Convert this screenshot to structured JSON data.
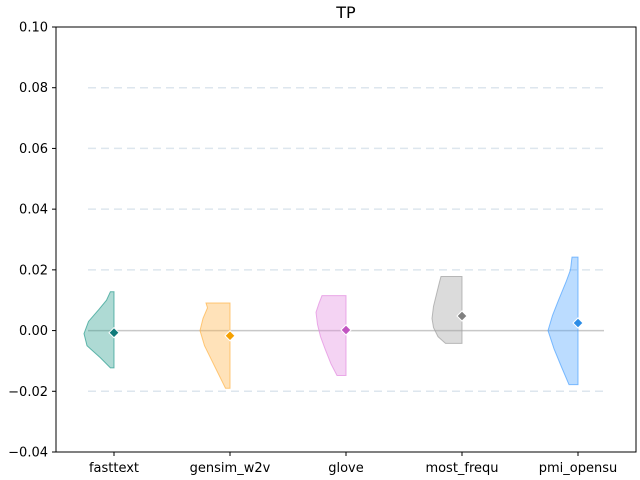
{
  "chart_data": {
    "type": "violin",
    "title": "TP",
    "xlabel": "",
    "ylabel": "",
    "ylim": [
      -0.04,
      0.1
    ],
    "yticks": [
      -0.04,
      -0.02,
      0.0,
      0.02,
      0.04,
      0.06,
      0.08,
      0.1
    ],
    "ytick_labels": [
      "−0.04",
      "−0.02",
      "0.00",
      "0.02",
      "0.04",
      "0.06",
      "0.08",
      "0.10"
    ],
    "grid": "horizontal dashed",
    "reference_line": 0.0,
    "categories": [
      "fasttext",
      "gensim_w2v",
      "glove",
      "most_frequ",
      "pmi_opensu"
    ],
    "series": [
      {
        "category": "fasttext",
        "color": "#2a9d8f",
        "marker_color": "#107a7a",
        "median": -0.0007,
        "min": -0.0123,
        "max": 0.0128,
        "profile": [
          [
            -0.0123,
            0.12
          ],
          [
            -0.009,
            0.45
          ],
          [
            -0.005,
            0.9
          ],
          [
            -0.001,
            1.0
          ],
          [
            0.003,
            0.85
          ],
          [
            0.007,
            0.5
          ],
          [
            0.01,
            0.25
          ],
          [
            0.0128,
            0.12
          ]
        ]
      },
      {
        "category": "gensim_w2v",
        "color": "#ffb347",
        "marker_color": "#f5a000",
        "median": -0.0017,
        "min": -0.019,
        "max": 0.0091,
        "profile": [
          [
            -0.019,
            0.15
          ],
          [
            -0.015,
            0.35
          ],
          [
            -0.01,
            0.6
          ],
          [
            -0.005,
            0.85
          ],
          [
            0.0,
            1.0
          ],
          [
            0.004,
            0.9
          ],
          [
            0.0075,
            0.75
          ],
          [
            0.0091,
            0.8
          ]
        ]
      },
      {
        "category": "glove",
        "color": "#e38be0",
        "marker_color": "#c154c1",
        "median": 0.0002,
        "min": -0.0148,
        "max": 0.0115,
        "profile": [
          [
            -0.0148,
            0.3
          ],
          [
            -0.011,
            0.5
          ],
          [
            -0.006,
            0.7
          ],
          [
            -0.002,
            0.85
          ],
          [
            0.002,
            0.95
          ],
          [
            0.006,
            1.0
          ],
          [
            0.009,
            0.9
          ],
          [
            0.0115,
            0.8
          ]
        ]
      },
      {
        "category": "most_frequ",
        "color": "#a0a0a0",
        "marker_color": "#808080",
        "median": 0.0048,
        "min": -0.0042,
        "max": 0.0178,
        "profile": [
          [
            -0.0042,
            0.55
          ],
          [
            -0.002,
            0.8
          ],
          [
            0.001,
            0.95
          ],
          [
            0.004,
            1.0
          ],
          [
            0.008,
            0.95
          ],
          [
            0.012,
            0.85
          ],
          [
            0.016,
            0.75
          ],
          [
            0.0178,
            0.7
          ]
        ]
      },
      {
        "category": "pmi_opensu",
        "color": "#4da3ff",
        "marker_color": "#2b8ce6",
        "median": 0.0025,
        "min": -0.0178,
        "max": 0.0242,
        "profile": [
          [
            -0.0178,
            0.3
          ],
          [
            -0.012,
            0.55
          ],
          [
            -0.006,
            0.8
          ],
          [
            0.0,
            1.0
          ],
          [
            0.005,
            0.85
          ],
          [
            0.01,
            0.65
          ],
          [
            0.016,
            0.4
          ],
          [
            0.02,
            0.25
          ],
          [
            0.0242,
            0.2
          ]
        ]
      }
    ]
  }
}
